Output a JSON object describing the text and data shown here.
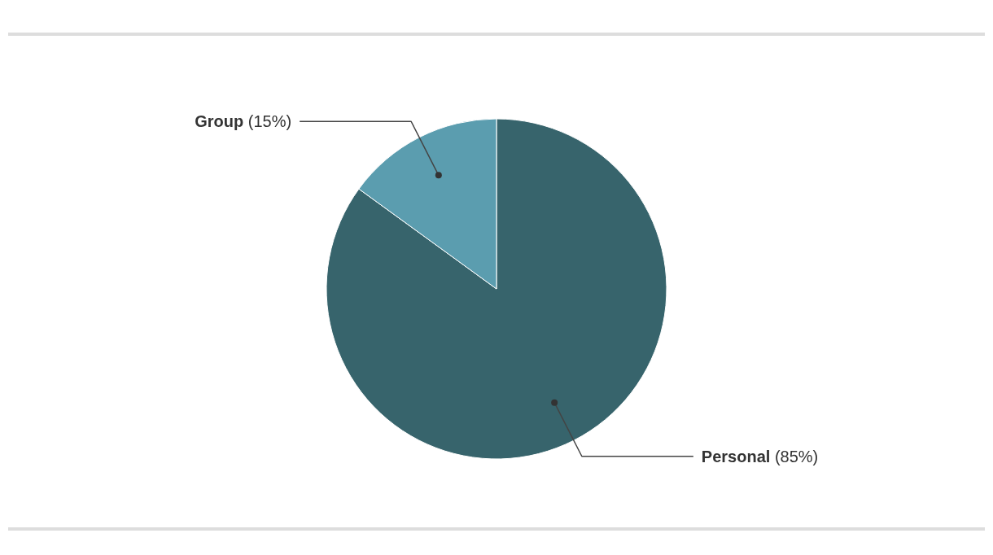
{
  "chart_data": {
    "type": "pie",
    "categories": [
      "Personal",
      "Group"
    ],
    "values": [
      85,
      15
    ],
    "colors": [
      "#37646c",
      "#5b9daf"
    ],
    "value_labels": [
      "(85%)",
      "(15%)"
    ]
  }
}
